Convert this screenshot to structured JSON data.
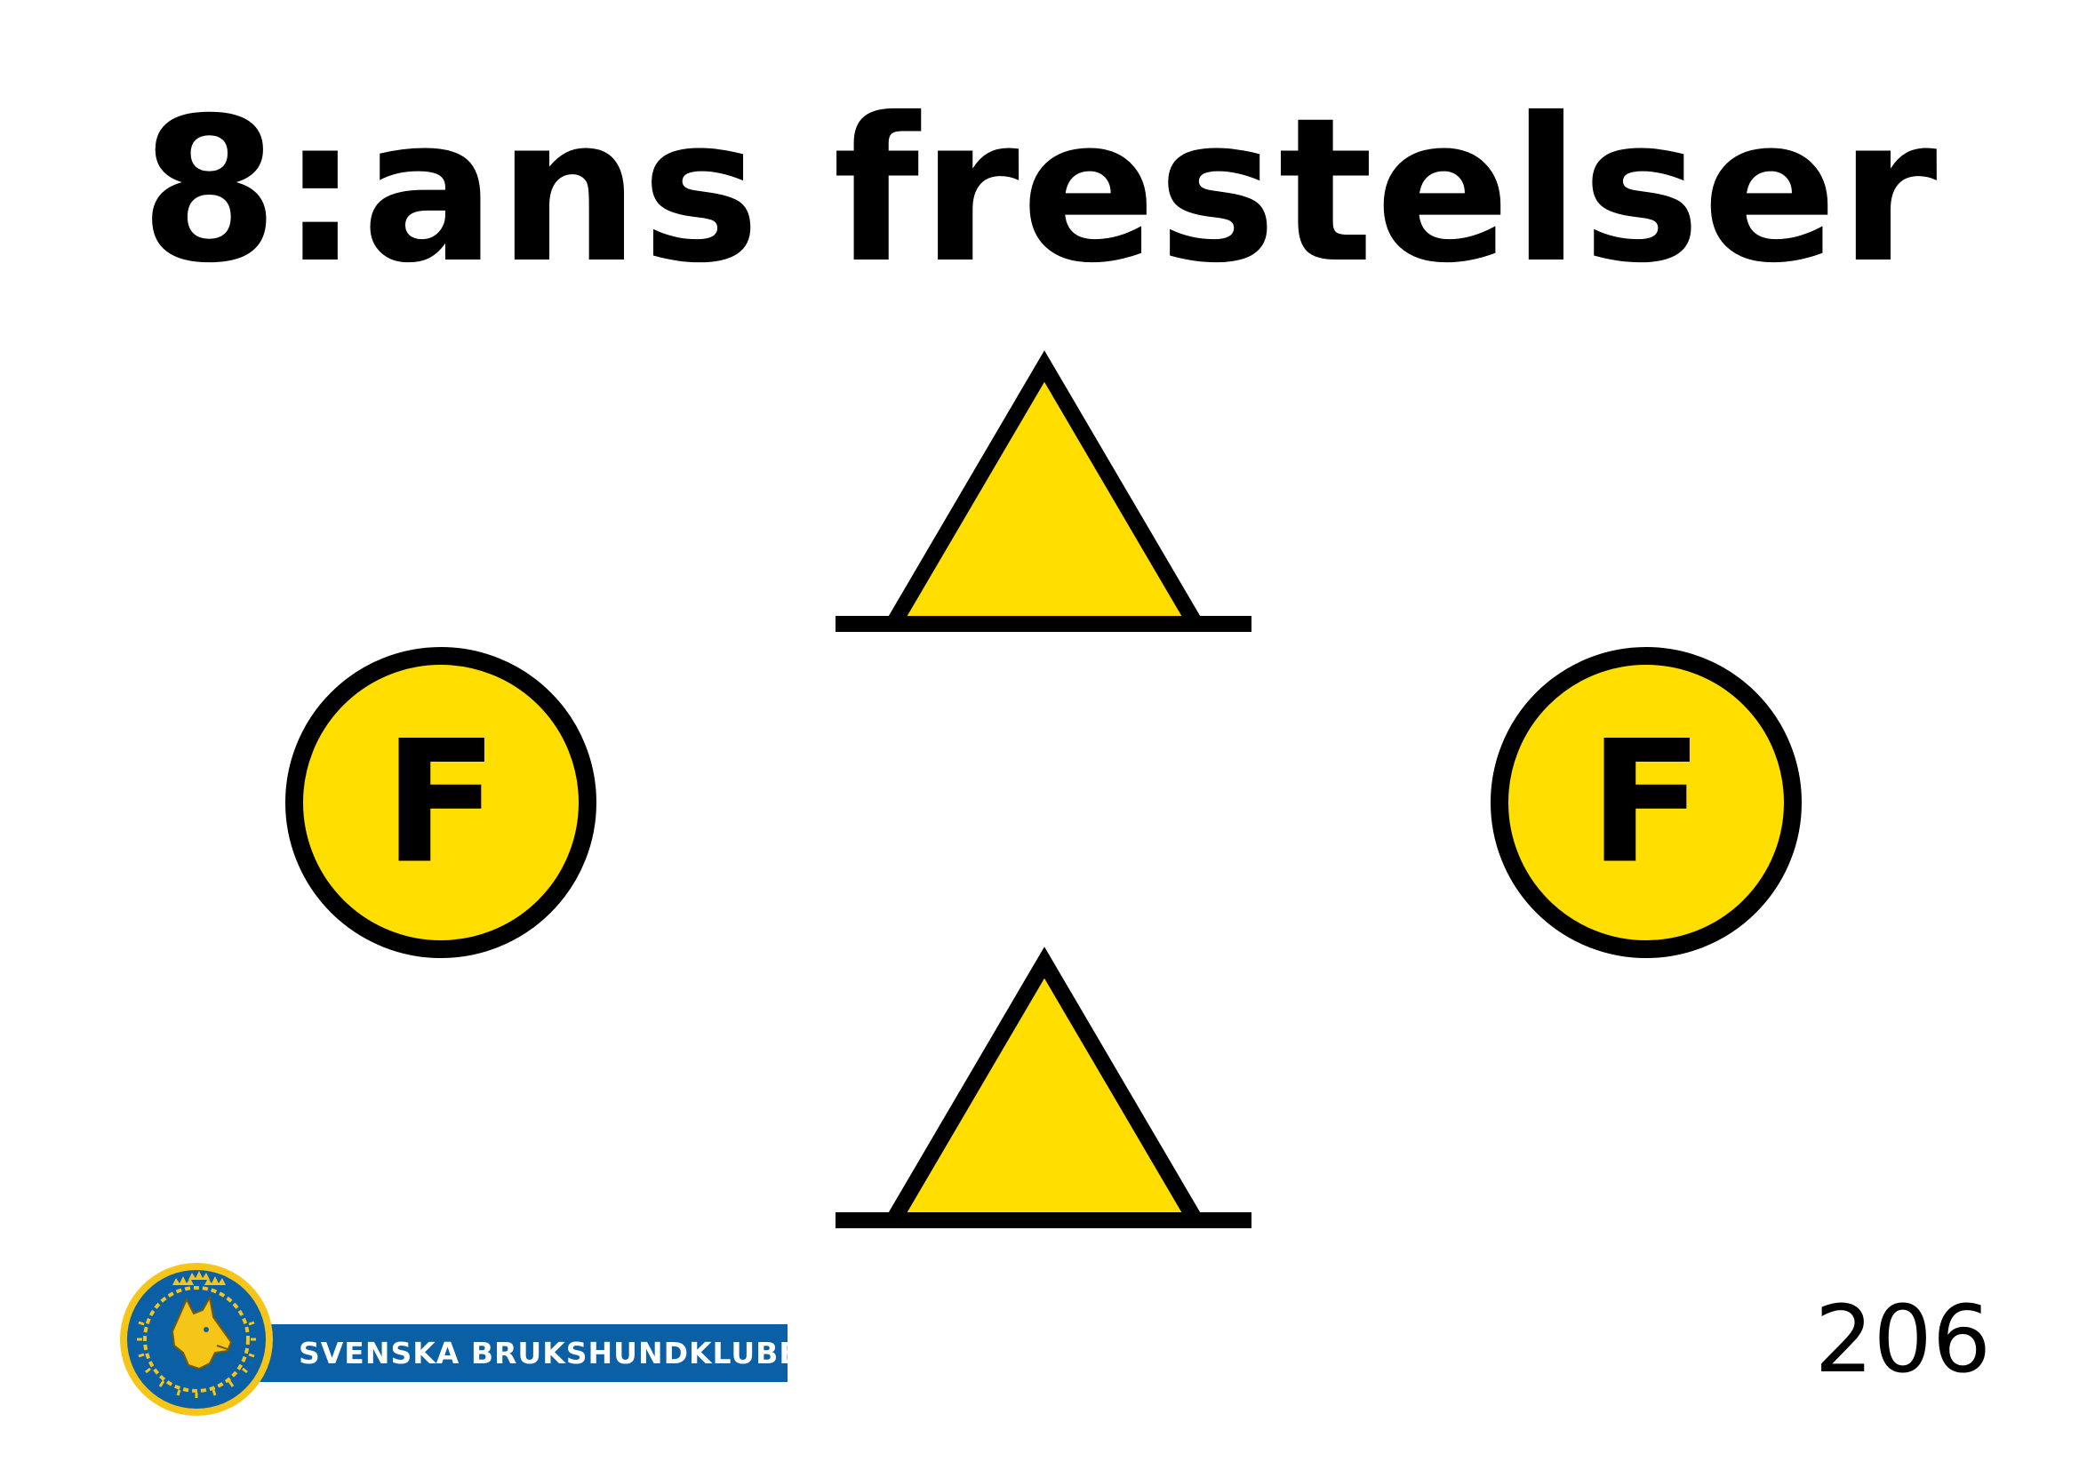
{
  "sign": {
    "title": "8:ans frestelser",
    "number": "206"
  },
  "markers": {
    "left_letter": "F",
    "right_letter": "F",
    "marker_icon": "circle-f-marker",
    "cone_icon": "triangle-cone"
  },
  "logo": {
    "org_name": "SVENSKA BRUKSHUNDKLUBBEN",
    "emblem_icon": "dog-head-emblem"
  },
  "colors": {
    "marker_fill": "#ffde00",
    "outline": "#000000",
    "banner_blue": "#0b5fa5",
    "emblem_gold": "#f5c518",
    "emblem_blue": "#0b5fa5"
  }
}
